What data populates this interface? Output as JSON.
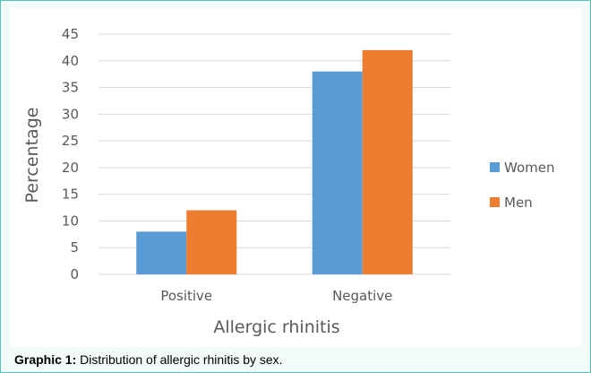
{
  "chart_data": {
    "type": "bar",
    "categories": [
      "Positive",
      "Negative"
    ],
    "series": [
      {
        "name": "Women",
        "values": [
          8,
          38
        ],
        "color": "#5b9bd5"
      },
      {
        "name": "Men",
        "values": [
          12,
          42
        ],
        "color": "#ed7d31"
      }
    ],
    "xlabel": "Allergic rhinitis",
    "ylabel": "Percentage",
    "ylim": [
      0,
      45
    ],
    "yticks": [
      "0",
      "5",
      "10",
      "15",
      "20",
      "25",
      "30",
      "35",
      "40",
      "45"
    ],
    "grid": true,
    "legend": "right"
  },
  "caption": {
    "label": "Graphic 1:",
    "text": " Distribution of allergic rhinitis by sex."
  }
}
